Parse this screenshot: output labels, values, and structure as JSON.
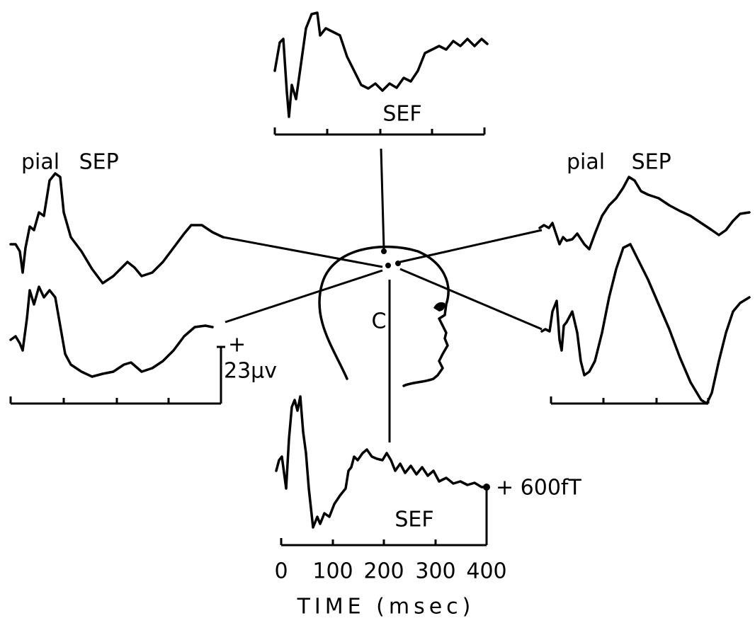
{
  "top_trace": {
    "label": "SEF"
  },
  "left_traces": {
    "label": "pial SEP",
    "scale_sign": "+",
    "scale_value": "23μv"
  },
  "right_traces": {
    "label": "pial SEP"
  },
  "head": {
    "label": "C"
  },
  "bottom_trace": {
    "label": "SEF",
    "scale": "+ 600fT"
  },
  "time_axis": {
    "ticks": [
      "0",
      "100",
      "200",
      "300",
      "400"
    ],
    "title": "TIME (msec)"
  }
}
